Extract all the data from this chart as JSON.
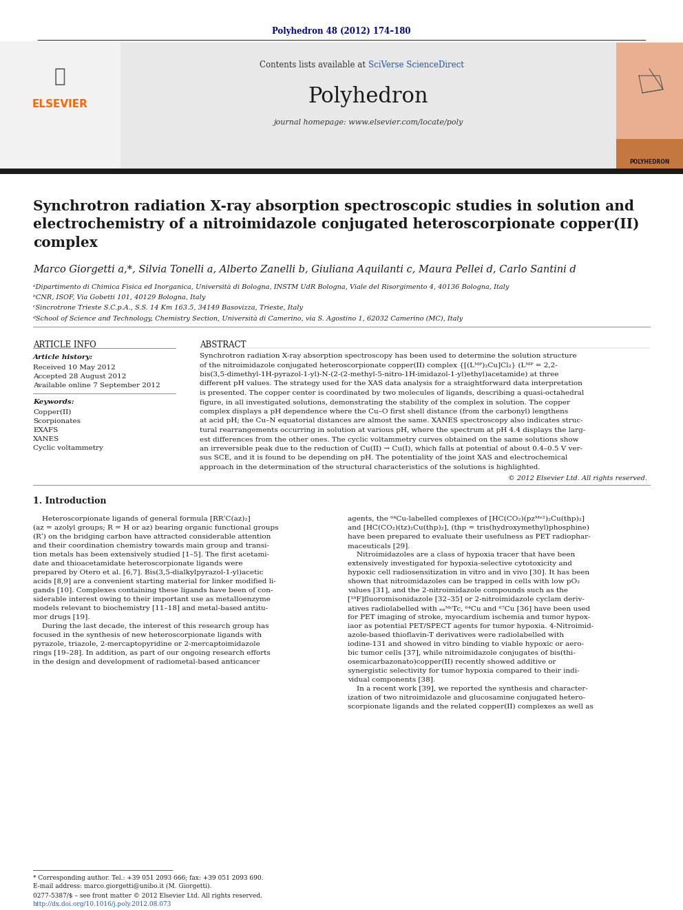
{
  "page_bg": "#ffffff",
  "journal_citation": "Polyhedron 48 (2012) 174–180",
  "journal_citation_color": "#00008B",
  "contents_text": "Contents lists available at ",
  "sciverse_text": "SciVerse ScienceDirect",
  "sciverse_color": "#2255AA",
  "journal_name": "Polyhedron",
  "journal_homepage": "journal homepage: www.elsevier.com/locate/poly",
  "thick_bar_color": "#1a1a1a",
  "title": "Synchrotron radiation X-ray absorption spectroscopic studies in solution and\nelectrochemistry of a nitroimidazole conjugated heteroscorpionate copper(II)\ncomplex",
  "authors": "Marco Giorgetti a,*, Silvia Tonelli a, Alberto Zanelli b, Giuliana Aquilanti c, Maura Pellei d, Carlo Santini d",
  "affil_a": "ᵃDipartimento di Chimica Fisica ed Inorganica, Università di Bologna, INSTM UdR Bologna, Viale del Risorgimento 4, 40136 Bologna, Italy",
  "affil_b": "ᵇCNR, ISOF, Via Gobetti 101, 40129 Bologna, Italy",
  "affil_c": "ᶜSincrotrone Trieste S.C.p.A., S.S. 14 Km 163.5, 34149 Basovizza, Trieste, Italy",
  "affil_d": "ᵈSchool of Science and Technology, Chemistry Section, Università di Camerino, via S. Agostino 1, 62032 Camerino (MC), Italy",
  "article_info_title": "ARTICLE INFO",
  "abstract_title": "ABSTRACT",
  "article_history_label": "Article history:",
  "received": "Received 10 May 2012",
  "accepted": "Accepted 28 August 2012",
  "available": "Available online 7 September 2012",
  "keywords_label": "Keywords:",
  "keywords": [
    "Copper(II)",
    "Scorpionates",
    "EXAFS",
    "XANES",
    "Cyclic voltammetry"
  ],
  "copyright": "© 2012 Elsevier Ltd. All rights reserved.",
  "intro_title": "1. Introduction",
  "footnote_star": "* Corresponding author. Tel.: +39 051 2093 666; fax: +39 051 2093 690.",
  "footnote_email": "E-mail address: marco.giorgetti@unibo.it (M. Giorgetti).",
  "footnote_issn": "0277-5387/$ – see front matter © 2012 Elsevier Ltd. All rights reserved.",
  "footnote_doi": "http://dx.doi.org/10.1016/j.poly.2012.08.073"
}
